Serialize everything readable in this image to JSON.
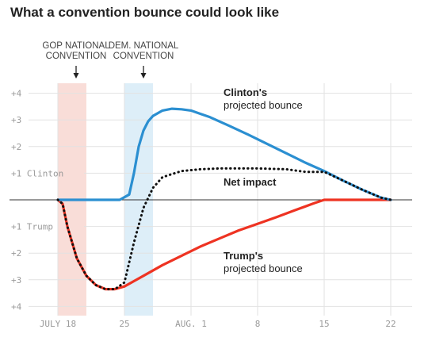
{
  "chart_data": {
    "type": "line",
    "title": "What a convention bounce could look like",
    "x_ticks": [
      "JULY 18",
      "25",
      "AUG. 1",
      "8",
      "15",
      "22"
    ],
    "y_ticks": [
      "+4",
      "+3",
      "+2",
      "+1 Clinton",
      "+1 Trump",
      "+2",
      "+3",
      "+4"
    ],
    "ylim": [
      -4,
      4
    ],
    "grid": true,
    "periods": [
      {
        "label_lines": [
          "GOP NATIONAL",
          "CONVENTION"
        ],
        "start": "July 18",
        "end": "July 21",
        "color": "#f9ddd8"
      },
      {
        "label_lines": [
          "DEM. NATIONAL",
          "CONVENTION"
        ],
        "start": "July 25",
        "end": "July 28",
        "color": "#ddeef8"
      }
    ],
    "series": [
      {
        "key": "clinton",
        "label_lines": [
          "Clinton's",
          "projected bounce"
        ],
        "color": "#2b8fd1",
        "style": "solid",
        "points": [
          [
            "July 18",
            0
          ],
          [
            "July 24.5",
            0
          ],
          [
            "July 25.5",
            0.2
          ],
          [
            "July 26",
            1.0
          ],
          [
            "July 26.5",
            2.0
          ],
          [
            "July 27",
            2.6
          ],
          [
            "July 27.5",
            2.95
          ],
          [
            "July 28",
            3.15
          ],
          [
            "July 29",
            3.35
          ],
          [
            "July 30",
            3.42
          ],
          [
            "July 31",
            3.4
          ],
          [
            "Aug. 1",
            3.35
          ],
          [
            "Aug. 3",
            3.1
          ],
          [
            "Aug. 5",
            2.78
          ],
          [
            "Aug. 7",
            2.45
          ],
          [
            "Aug. 9",
            2.1
          ],
          [
            "Aug. 11",
            1.75
          ],
          [
            "Aug. 13",
            1.4
          ],
          [
            "Aug. 15",
            1.08
          ],
          [
            "Aug. 17",
            0.72
          ],
          [
            "Aug. 19",
            0.38
          ],
          [
            "Aug. 21",
            0.08
          ],
          [
            "Aug. 22",
            0
          ]
        ]
      },
      {
        "key": "net",
        "label_lines": [
          "Net impact"
        ],
        "color": "#111111",
        "style": "dotted",
        "points": [
          [
            "July 18",
            0
          ],
          [
            "July 18.5",
            -0.15
          ],
          [
            "July 19",
            -1.0
          ],
          [
            "July 20",
            -2.2
          ],
          [
            "July 21",
            -2.85
          ],
          [
            "July 22",
            -3.2
          ],
          [
            "July 23",
            -3.35
          ],
          [
            "July 24",
            -3.35
          ],
          [
            "July 25",
            -3.1
          ],
          [
            "July 26",
            -1.6
          ],
          [
            "July 27",
            -0.3
          ],
          [
            "July 28",
            0.45
          ],
          [
            "July 29",
            0.85
          ],
          [
            "July 31",
            1.08
          ],
          [
            "Aug. 2",
            1.15
          ],
          [
            "Aug. 4",
            1.18
          ],
          [
            "Aug. 8",
            1.18
          ],
          [
            "Aug. 11",
            1.15
          ],
          [
            "Aug. 13",
            1.05
          ],
          [
            "Aug. 15",
            1.05
          ],
          [
            "Aug. 17",
            0.72
          ],
          [
            "Aug. 19",
            0.38
          ],
          [
            "Aug. 21",
            0.08
          ],
          [
            "Aug. 22",
            0
          ]
        ]
      },
      {
        "key": "trump",
        "label_lines": [
          "Trump's",
          "projected bounce"
        ],
        "color": "#ee3322",
        "style": "solid",
        "points": [
          [
            "July 18",
            0
          ],
          [
            "July 18.5",
            -0.15
          ],
          [
            "July 19",
            -1.0
          ],
          [
            "July 20",
            -2.2
          ],
          [
            "July 21",
            -2.85
          ],
          [
            "July 22",
            -3.2
          ],
          [
            "July 23",
            -3.35
          ],
          [
            "July 24",
            -3.35
          ],
          [
            "July 25",
            -3.25
          ],
          [
            "July 26",
            -3.05
          ],
          [
            "July 27",
            -2.85
          ],
          [
            "July 29",
            -2.45
          ],
          [
            "July 31",
            -2.1
          ],
          [
            "Aug. 2",
            -1.75
          ],
          [
            "Aug. 4",
            -1.45
          ],
          [
            "Aug. 6",
            -1.15
          ],
          [
            "Aug. 8",
            -0.9
          ],
          [
            "Aug. 10",
            -0.65
          ],
          [
            "Aug. 12",
            -0.38
          ],
          [
            "Aug. 14",
            -0.12
          ],
          [
            "Aug. 15",
            0
          ],
          [
            "Aug. 22",
            0
          ]
        ]
      }
    ]
  }
}
